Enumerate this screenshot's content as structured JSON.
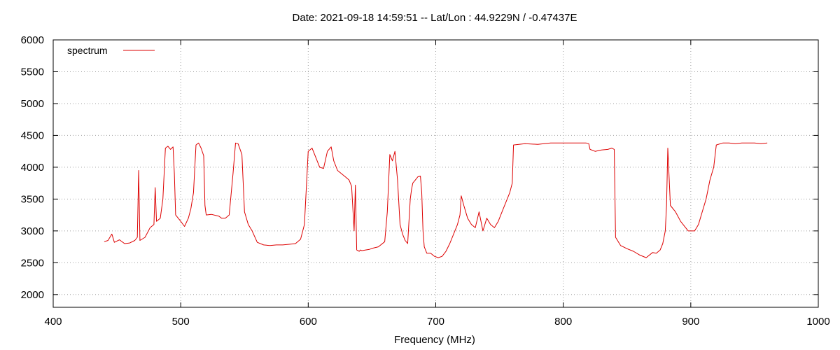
{
  "chart_data": {
    "type": "line",
    "title": "Date: 2021-09-18 14:59:51  --  Lat/Lon : 44.9229N / -0.47437E",
    "xlabel": "Frequency (MHz)",
    "ylabel": "",
    "xlim": [
      400,
      1000
    ],
    "ylim": [
      1800,
      6000
    ],
    "xticks": [
      400,
      500,
      600,
      700,
      800,
      900,
      1000
    ],
    "yticks": [
      2000,
      2500,
      3000,
      3500,
      4000,
      4500,
      5000,
      5500,
      6000
    ],
    "grid": true,
    "legend_position": "top-left",
    "color": "#dd0000",
    "series": [
      {
        "name": "spectrum",
        "x": [
          440,
          443,
          446,
          448,
          452,
          456,
          460,
          464,
          466,
          467,
          468,
          472,
          476,
          479,
          480,
          481,
          484,
          486,
          488,
          490,
          492,
          494,
          495,
          496,
          500,
          503,
          506,
          508,
          510,
          512,
          514,
          516,
          518,
          519,
          520,
          524,
          528,
          530,
          532,
          535,
          538,
          541,
          543,
          545,
          548,
          550,
          553,
          556,
          560,
          565,
          570,
          575,
          580,
          585,
          590,
          594,
          597,
          600,
          603,
          606,
          609,
          612,
          615,
          618,
          620,
          623,
          626,
          629,
          632,
          634,
          636,
          637,
          638,
          640,
          641,
          642,
          645,
          648,
          651,
          655,
          660,
          662,
          664,
          666,
          668,
          670,
          672,
          674,
          676,
          678,
          680,
          681,
          682,
          684,
          686,
          688,
          689,
          690,
          691,
          693,
          696,
          699,
          702,
          705,
          708,
          711,
          714,
          717,
          719,
          720,
          722,
          725,
          728,
          731,
          734,
          737,
          740,
          743,
          746,
          749,
          752,
          755,
          758,
          760,
          761,
          770,
          780,
          790,
          800,
          810,
          818,
          820,
          821,
          825,
          830,
          835,
          838,
          840,
          841,
          845,
          850,
          855,
          860,
          865,
          870,
          873,
          876,
          878,
          880,
          881,
          882,
          884,
          888,
          892,
          896,
          898,
          900,
          903,
          906,
          909,
          912,
          915,
          918,
          920,
          925,
          930,
          935,
          940,
          945,
          950,
          955,
          960
        ],
        "values": [
          2830,
          2850,
          2950,
          2820,
          2860,
          2800,
          2810,
          2850,
          2900,
          3950,
          2850,
          2900,
          3050,
          3100,
          3680,
          3150,
          3200,
          3500,
          4300,
          4330,
          4280,
          4320,
          3900,
          3250,
          3150,
          3070,
          3200,
          3350,
          3600,
          4350,
          4380,
          4300,
          4180,
          3400,
          3250,
          3260,
          3240,
          3230,
          3200,
          3200,
          3250,
          3900,
          4380,
          4370,
          4200,
          3300,
          3100,
          3000,
          2820,
          2780,
          2770,
          2780,
          2780,
          2790,
          2800,
          2870,
          3100,
          4250,
          4300,
          4150,
          4000,
          3980,
          4250,
          4320,
          4100,
          3950,
          3900,
          3850,
          3800,
          3700,
          3000,
          3720,
          2700,
          2680,
          2700,
          2690,
          2700,
          2710,
          2730,
          2750,
          2830,
          3300,
          4200,
          4100,
          4250,
          3800,
          3100,
          2950,
          2850,
          2800,
          3500,
          3650,
          3750,
          3800,
          3850,
          3860,
          3600,
          3000,
          2750,
          2650,
          2650,
          2600,
          2580,
          2600,
          2680,
          2800,
          2950,
          3100,
          3250,
          3550,
          3400,
          3200,
          3100,
          3050,
          3300,
          3000,
          3200,
          3100,
          3050,
          3150,
          3300,
          3450,
          3600,
          3750,
          4350,
          4370,
          4360,
          4380,
          4380,
          4380,
          4380,
          4370,
          4280,
          4250,
          4270,
          4280,
          4300,
          4280,
          2900,
          2770,
          2720,
          2680,
          2620,
          2580,
          2660,
          2650,
          2700,
          2800,
          3000,
          3400,
          4300,
          3400,
          3300,
          3150,
          3050,
          3000,
          3000,
          3000,
          3100,
          3300,
          3500,
          3800,
          4000,
          4350,
          4380,
          4380,
          4370,
          4380,
          4380,
          4380,
          4370,
          4380
        ]
      }
    ]
  }
}
